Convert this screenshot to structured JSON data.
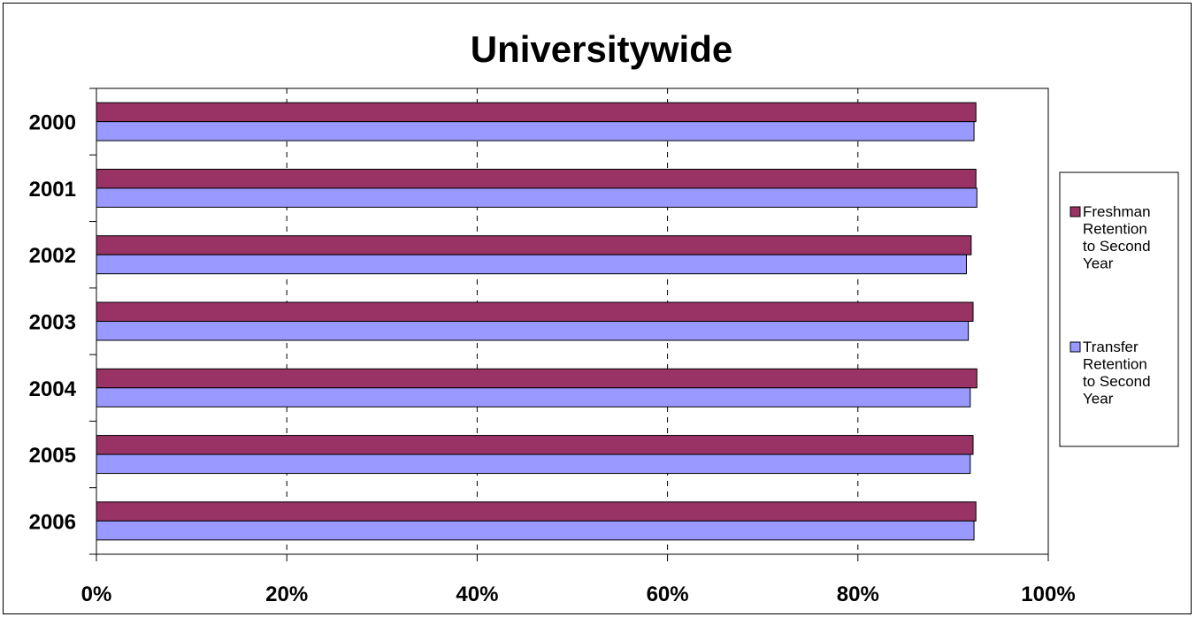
{
  "chart_data": {
    "type": "bar",
    "orientation": "horizontal",
    "title": "Universitywide",
    "categories": [
      "2000",
      "2001",
      "2002",
      "2003",
      "2004",
      "2005",
      "2006"
    ],
    "series": [
      {
        "name": "Freshman Retention to Second Year",
        "legend_lines": [
          "Freshman",
          "Retention",
          "to Second",
          "Year"
        ],
        "color": "#993366",
        "values": [
          92.4,
          92.4,
          91.9,
          92.1,
          92.5,
          92.1,
          92.4
        ]
      },
      {
        "name": "Transfer Retention to Second Year",
        "legend_lines": [
          "Transfer",
          "Retention",
          "to Second",
          "Year"
        ],
        "color": "#9999ff",
        "values": [
          92.2,
          92.5,
          91.4,
          91.6,
          91.8,
          91.8,
          92.2
        ]
      }
    ],
    "xlim": [
      0,
      100
    ],
    "x_ticks": [
      "0%",
      "20%",
      "40%",
      "60%",
      "80%",
      "100%"
    ],
    "x_tick_values": [
      0,
      20,
      40,
      60,
      80,
      100
    ],
    "grid": true,
    "legend_position": "right"
  }
}
